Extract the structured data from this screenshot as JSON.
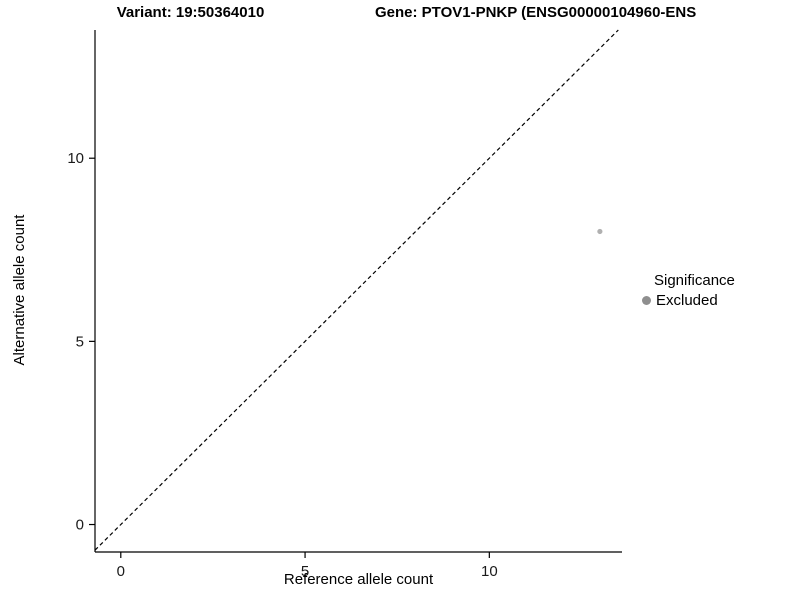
{
  "chart_data": {
    "type": "scatter",
    "title_left": "Variant: 19:50364010",
    "title_right": "Gene: PTOV1-PNKP (ENSG00000104960-ENS",
    "xlabel": "Reference allele count",
    "ylabel": "Alternative allele count",
    "xlim": [
      -0.7,
      13.6
    ],
    "ylim": [
      -0.75,
      13.5
    ],
    "x_ticks": [
      0,
      5,
      10
    ],
    "y_ticks": [
      0,
      5,
      10
    ],
    "grid": false,
    "identity_line": {
      "style": "dashed",
      "color": "#000000",
      "slope": 1,
      "intercept": 0
    },
    "points": [
      {
        "x": 13,
        "y": 8,
        "significance": "Excluded",
        "color": "#b0b0b0"
      }
    ],
    "legend": {
      "title": "Significance",
      "position": "right",
      "entries": [
        {
          "label": "Excluded",
          "color": "#8f8f8f"
        }
      ]
    },
    "axis_color": "#000000",
    "tick_label_color": "#1a1a1a"
  }
}
